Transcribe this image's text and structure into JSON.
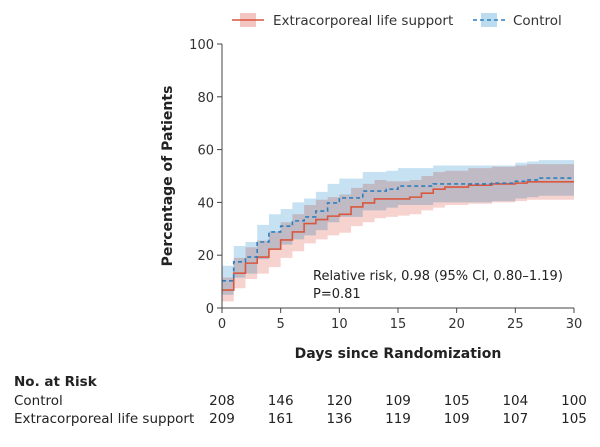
{
  "chart_data": {
    "type": "line",
    "subtype": "step-with-confidence-bands",
    "title": "",
    "xlabel": "Days since Randomization",
    "ylabel": "Percentage of Patients",
    "xlim": [
      0,
      30
    ],
    "ylim": [
      0,
      100
    ],
    "x_ticks": [
      0,
      5,
      10,
      15,
      20,
      25,
      30
    ],
    "y_ticks": [
      0,
      20,
      40,
      60,
      80,
      100
    ],
    "grid": false,
    "legend_position": "top",
    "series": [
      {
        "name": "Extracorporeal life support",
        "style": "solid",
        "color": "#d9573f",
        "band_color": "#f4c4c0",
        "x": [
          0,
          1,
          2,
          3,
          4,
          5,
          6,
          7,
          8,
          9,
          10,
          11,
          12,
          13,
          14,
          15,
          16,
          17,
          18,
          19,
          21,
          23,
          25,
          26,
          30
        ],
        "y": [
          6.8,
          13.2,
          17.0,
          19.3,
          22.3,
          25.8,
          28.8,
          32.0,
          33.5,
          34.8,
          35.5,
          38.3,
          39.8,
          41.3,
          41.3,
          41.3,
          42.0,
          43.5,
          45.0,
          45.8,
          46.5,
          47.0,
          47.3,
          47.8,
          47.8
        ],
        "lo": [
          2.5,
          7.5,
          11.0,
          13.0,
          15.5,
          19.0,
          21.5,
          24.5,
          26.0,
          27.5,
          28.5,
          31.0,
          32.5,
          34.0,
          34.5,
          35.0,
          35.5,
          37.0,
          38.0,
          39.0,
          39.5,
          40.0,
          40.5,
          41.0,
          41.0
        ],
        "hi": [
          11.5,
          19.0,
          23.0,
          25.5,
          29.0,
          32.5,
          35.5,
          39.0,
          41.0,
          42.0,
          43.0,
          45.5,
          47.0,
          48.5,
          48.0,
          48.0,
          48.5,
          50.0,
          51.5,
          52.0,
          53.0,
          53.5,
          54.0,
          54.5,
          54.5
        ]
      },
      {
        "name": "Control",
        "style": "dashed",
        "color": "#2e7fbf",
        "band_color": "#bcdcf0",
        "x": [
          0,
          1,
          2,
          3,
          4,
          5,
          6,
          7,
          8,
          9,
          10,
          12,
          14,
          15,
          18,
          23,
          25,
          26,
          27,
          30
        ],
        "y": [
          10.3,
          17.5,
          19.3,
          25.0,
          28.8,
          31.0,
          33.0,
          34.5,
          36.7,
          39.8,
          41.7,
          44.3,
          45.0,
          46.2,
          47.0,
          47.3,
          48.0,
          48.5,
          49.2,
          49.2
        ],
        "lo": [
          5.0,
          11.5,
          13.0,
          18.5,
          22.0,
          24.0,
          26.0,
          27.5,
          29.5,
          32.5,
          34.5,
          37.0,
          38.0,
          39.0,
          40.0,
          40.5,
          41.5,
          42.0,
          42.5,
          42.5
        ],
        "hi": [
          16.0,
          23.5,
          25.0,
          31.5,
          35.5,
          37.5,
          40.0,
          41.5,
          44.0,
          47.0,
          49.0,
          51.5,
          52.0,
          53.0,
          54.0,
          54.0,
          55.0,
          55.5,
          56.0,
          56.0
        ]
      }
    ],
    "annotations": [
      "Relative risk, 0.98 (95% CI, 0.80–1.19)",
      "P=0.81"
    ]
  },
  "legend": {
    "items": [
      {
        "label": "Extracorporeal life support"
      },
      {
        "label": "Control"
      }
    ]
  },
  "risk_table": {
    "title": "No. at Risk",
    "days": [
      0,
      5,
      10,
      15,
      20,
      25,
      30
    ],
    "rows": [
      {
        "label": "Control",
        "values": [
          "208",
          "146",
          "120",
          "109",
          "105",
          "104",
          "100"
        ]
      },
      {
        "label": "Extracorporeal life support",
        "values": [
          "209",
          "161",
          "136",
          "119",
          "109",
          "107",
          "105"
        ]
      }
    ]
  }
}
